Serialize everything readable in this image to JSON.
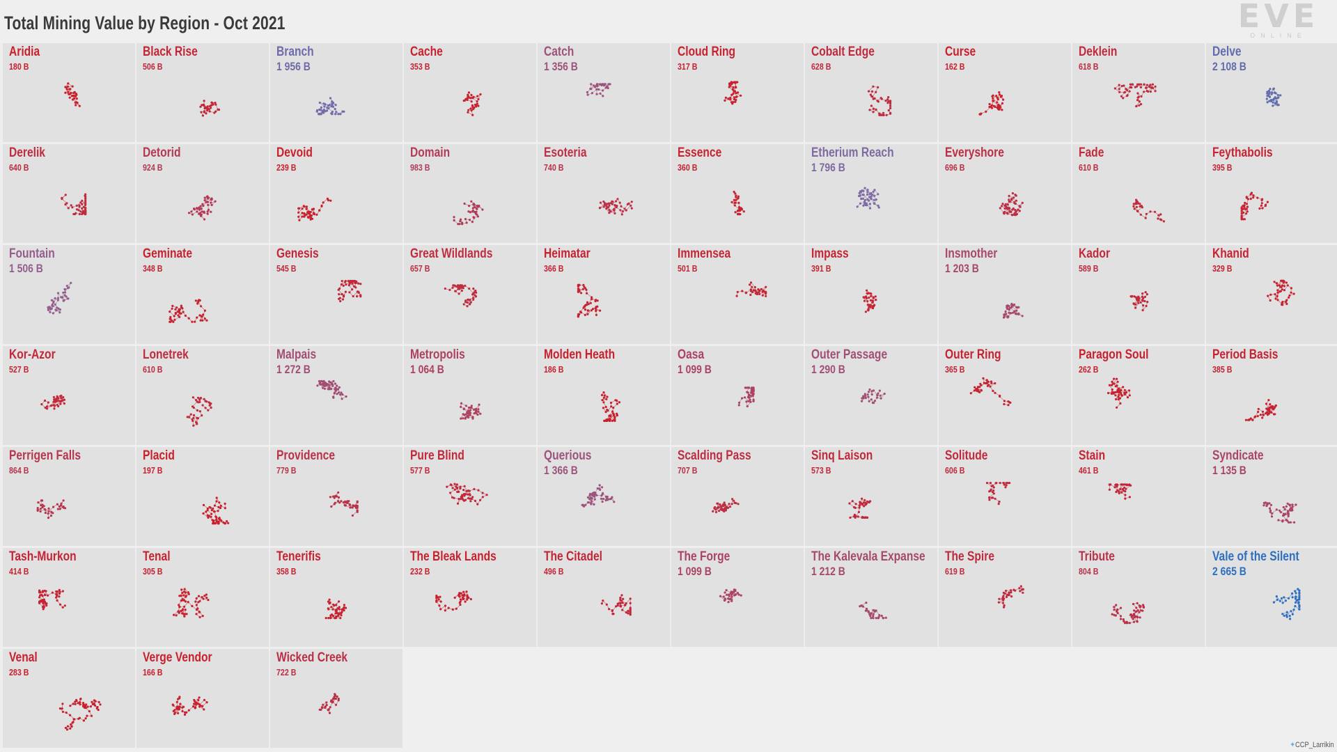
{
  "title": "Total Mining Value by Region - Oct 2021",
  "logo": {
    "wordmark": "EVE",
    "subtitle": "ONLINE"
  },
  "credit": "CCP_Larrikin",
  "colors": {
    "low": "#c8202d",
    "high": "#2e6fbf",
    "mid": "#8a6a9e",
    "background": "#efefef",
    "panel": "#e1e1e1"
  },
  "chart_data": {
    "type": "small-multiples",
    "title": "Total Mining Value by Region - Oct 2021",
    "unit": "B",
    "regions": [
      {
        "name": "Aridia",
        "value_label": "180 B",
        "value": 180
      },
      {
        "name": "Black Rise",
        "value_label": "506 B",
        "value": 506
      },
      {
        "name": "Branch",
        "value_label": "1 956 B",
        "value": 1956
      },
      {
        "name": "Cache",
        "value_label": "353 B",
        "value": 353
      },
      {
        "name": "Catch",
        "value_label": "1 356 B",
        "value": 1356
      },
      {
        "name": "Cloud Ring",
        "value_label": "317 B",
        "value": 317
      },
      {
        "name": "Cobalt Edge",
        "value_label": "628 B",
        "value": 628
      },
      {
        "name": "Curse",
        "value_label": "162 B",
        "value": 162
      },
      {
        "name": "Deklein",
        "value_label": "618 B",
        "value": 618
      },
      {
        "name": "Delve",
        "value_label": "2 108 B",
        "value": 2108
      },
      {
        "name": "Derelik",
        "value_label": "640 B",
        "value": 640
      },
      {
        "name": "Detorid",
        "value_label": "924 B",
        "value": 924
      },
      {
        "name": "Devoid",
        "value_label": "239 B",
        "value": 239
      },
      {
        "name": "Domain",
        "value_label": "983 B",
        "value": 983
      },
      {
        "name": "Esoteria",
        "value_label": "740 B",
        "value": 740
      },
      {
        "name": "Essence",
        "value_label": "360 B",
        "value": 360
      },
      {
        "name": "Etherium Reach",
        "value_label": "1 796 B",
        "value": 1796
      },
      {
        "name": "Everyshore",
        "value_label": "696 B",
        "value": 696
      },
      {
        "name": "Fade",
        "value_label": "610 B",
        "value": 610
      },
      {
        "name": "Feythabolis",
        "value_label": "395 B",
        "value": 395
      },
      {
        "name": "Fountain",
        "value_label": "1 506 B",
        "value": 1506
      },
      {
        "name": "Geminate",
        "value_label": "348 B",
        "value": 348
      },
      {
        "name": "Genesis",
        "value_label": "545 B",
        "value": 545
      },
      {
        "name": "Great Wildlands",
        "value_label": "657 B",
        "value": 657
      },
      {
        "name": "Heimatar",
        "value_label": "366 B",
        "value": 366
      },
      {
        "name": "Immensea",
        "value_label": "501 B",
        "value": 501
      },
      {
        "name": "Impass",
        "value_label": "391 B",
        "value": 391
      },
      {
        "name": "Insmother",
        "value_label": "1 203 B",
        "value": 1203
      },
      {
        "name": "Kador",
        "value_label": "589 B",
        "value": 589
      },
      {
        "name": "Khanid",
        "value_label": "329 B",
        "value": 329
      },
      {
        "name": "Kor-Azor",
        "value_label": "527 B",
        "value": 527
      },
      {
        "name": "Lonetrek",
        "value_label": "610 B",
        "value": 610
      },
      {
        "name": "Malpais",
        "value_label": "1 272 B",
        "value": 1272
      },
      {
        "name": "Metropolis",
        "value_label": "1 064 B",
        "value": 1064
      },
      {
        "name": "Molden Heath",
        "value_label": "186 B",
        "value": 186
      },
      {
        "name": "Oasa",
        "value_label": "1 099 B",
        "value": 1099
      },
      {
        "name": "Outer Passage",
        "value_label": "1 290 B",
        "value": 1290
      },
      {
        "name": "Outer Ring",
        "value_label": "365 B",
        "value": 365
      },
      {
        "name": "Paragon Soul",
        "value_label": "262 B",
        "value": 262
      },
      {
        "name": "Period Basis",
        "value_label": "385 B",
        "value": 385
      },
      {
        "name": "Perrigen Falls",
        "value_label": "864 B",
        "value": 864
      },
      {
        "name": "Placid",
        "value_label": "197 B",
        "value": 197
      },
      {
        "name": "Providence",
        "value_label": "779 B",
        "value": 779
      },
      {
        "name": "Pure Blind",
        "value_label": "577 B",
        "value": 577
      },
      {
        "name": "Querious",
        "value_label": "1 366 B",
        "value": 1366
      },
      {
        "name": "Scalding Pass",
        "value_label": "707 B",
        "value": 707
      },
      {
        "name": "Sinq Laison",
        "value_label": "573 B",
        "value": 573
      },
      {
        "name": "Solitude",
        "value_label": "606 B",
        "value": 606
      },
      {
        "name": "Stain",
        "value_label": "461 B",
        "value": 461
      },
      {
        "name": "Syndicate",
        "value_label": "1 135 B",
        "value": 1135
      },
      {
        "name": "Tash-Murkon",
        "value_label": "414 B",
        "value": 414
      },
      {
        "name": "Tenal",
        "value_label": "305 B",
        "value": 305
      },
      {
        "name": "Tenerifis",
        "value_label": "358 B",
        "value": 358
      },
      {
        "name": "The Bleak Lands",
        "value_label": "232 B",
        "value": 232
      },
      {
        "name": "The Citadel",
        "value_label": "496 B",
        "value": 496
      },
      {
        "name": "The Forge",
        "value_label": "1 099 B",
        "value": 1099
      },
      {
        "name": "The Kalevala Expanse",
        "value_label": "1 212 B",
        "value": 1212
      },
      {
        "name": "The Spire",
        "value_label": "619 B",
        "value": 619
      },
      {
        "name": "Tribute",
        "value_label": "804 B",
        "value": 804
      },
      {
        "name": "Vale of the Silent",
        "value_label": "2 665 B",
        "value": 2665
      },
      {
        "name": "Venal",
        "value_label": "283 B",
        "value": 283
      },
      {
        "name": "Verge Vendor",
        "value_label": "166 B",
        "value": 166
      },
      {
        "name": "Wicked Creek",
        "value_label": "722 B",
        "value": 722
      }
    ]
  }
}
